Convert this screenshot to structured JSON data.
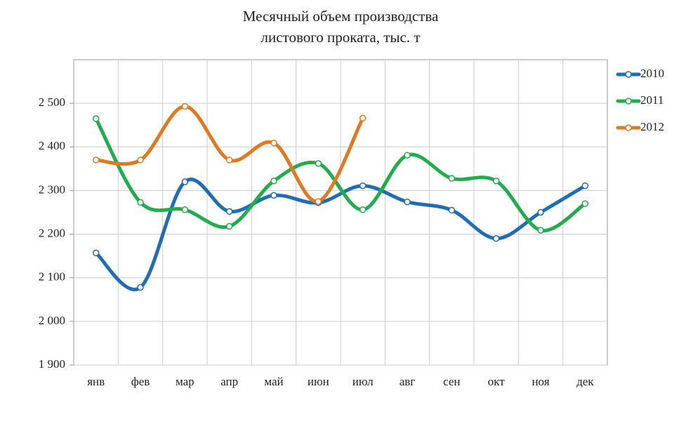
{
  "chart_data": {
    "type": "line",
    "title": [
      "Месячный объем производства",
      "листового проката, тыс. т"
    ],
    "categories": [
      "янв",
      "фев",
      "мар",
      "апр",
      "май",
      "июн",
      "июл",
      "авг",
      "сен",
      "окт",
      "ноя",
      "дек"
    ],
    "series": [
      {
        "name": "2010",
        "color": "#1f6db5",
        "values": [
          2157,
          2078,
          2320,
          2252,
          2289,
          2272,
          2311,
          2274,
          2255,
          2190,
          2250,
          2311
        ]
      },
      {
        "name": "2011",
        "color": "#1fae4b",
        "values": [
          2465,
          2273,
          2256,
          2218,
          2322,
          2362,
          2256,
          2381,
          2328,
          2322,
          2209,
          2270
        ]
      },
      {
        "name": "2012",
        "color": "#e07a1f",
        "values": [
          2370,
          2370,
          2493,
          2370,
          2409,
          2275,
          2466,
          null,
          null,
          null,
          null,
          null
        ]
      }
    ],
    "ylim": [
      1900,
      2600
    ],
    "yticks": [
      {
        "value": 1900,
        "label": "1 900"
      },
      {
        "value": 2000,
        "label": "2 000"
      },
      {
        "value": 2100,
        "label": "2 100"
      },
      {
        "value": 2200,
        "label": "2 200"
      },
      {
        "value": 2300,
        "label": "2 300"
      },
      {
        "value": 2400,
        "label": "2 400"
      },
      {
        "value": 2500,
        "label": "2 500"
      }
    ],
    "grid": true,
    "smooth": true,
    "legend": "right"
  }
}
